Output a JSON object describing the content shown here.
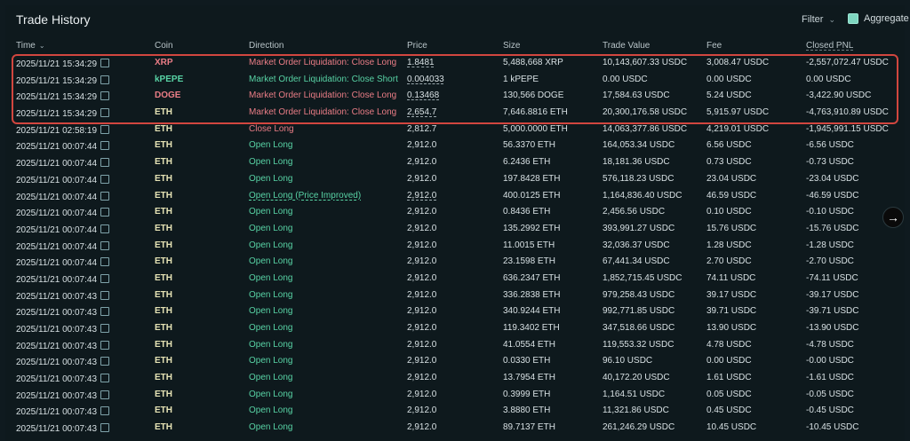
{
  "title": "Trade History",
  "controls": {
    "filter_label": "Filter",
    "aggregate_label": "Aggregate"
  },
  "table": {
    "headers": {
      "time": "Time",
      "coin": "Coin",
      "direction": "Direction",
      "price": "Price",
      "size": "Size",
      "trade_value": "Trade Value",
      "fee": "Fee",
      "closed_pnl": "Closed PNL"
    },
    "rows": [
      {
        "time": "2025/11/21 15:34:29",
        "coin": "XRP",
        "direction": "Market Order Liquidation: Close Long",
        "price": "1.8481",
        "size": "5,488,668 XRP",
        "trade_value": "10,143,607.33 USDC",
        "fee": "3,008.47 USDC",
        "closed_pnl": "-2,557,072.47 USDC"
      },
      {
        "time": "2025/11/21 15:34:29",
        "coin": "kPEPE",
        "direction": "Market Order Liquidation: Close Short",
        "price": "0.004033",
        "size": "1 kPEPE",
        "trade_value": "0.00 USDC",
        "fee": "0.00 USDC",
        "closed_pnl": "0.00 USDC"
      },
      {
        "time": "2025/11/21 15:34:29",
        "coin": "DOGE",
        "direction": "Market Order Liquidation: Close Long",
        "price": "0.13468",
        "size": "130,566 DOGE",
        "trade_value": "17,584.63 USDC",
        "fee": "5.24 USDC",
        "closed_pnl": "-3,422.90 USDC"
      },
      {
        "time": "2025/11/21 15:34:29",
        "coin": "ETH",
        "direction": "Market Order Liquidation: Close Long",
        "price": "2,654.7",
        "size": "7,646.8816 ETH",
        "trade_value": "20,300,176.58 USDC",
        "fee": "5,915.97 USDC",
        "closed_pnl": "-4,763,910.89 USDC"
      },
      {
        "time": "2025/11/21 02:58:19",
        "coin": "ETH",
        "direction": "Close Long",
        "price": "2,812.7",
        "size": "5,000.0000 ETH",
        "trade_value": "14,063,377.86 USDC",
        "fee": "4,219.01 USDC",
        "closed_pnl": "-1,945,991.15 USDC"
      },
      {
        "time": "2025/11/21 00:07:44",
        "coin": "ETH",
        "direction": "Open Long",
        "price": "2,912.0",
        "size": "56.3370 ETH",
        "trade_value": "164,053.34 USDC",
        "fee": "6.56 USDC",
        "closed_pnl": "-6.56 USDC"
      },
      {
        "time": "2025/11/21 00:07:44",
        "coin": "ETH",
        "direction": "Open Long",
        "price": "2,912.0",
        "size": "6.2436 ETH",
        "trade_value": "18,181.36 USDC",
        "fee": "0.73 USDC",
        "closed_pnl": "-0.73 USDC"
      },
      {
        "time": "2025/11/21 00:07:44",
        "coin": "ETH",
        "direction": "Open Long",
        "price": "2,912.0",
        "size": "197.8428 ETH",
        "trade_value": "576,118.23 USDC",
        "fee": "23.04 USDC",
        "closed_pnl": "-23.04 USDC"
      },
      {
        "time": "2025/11/21 00:07:44",
        "coin": "ETH",
        "direction": "Open Long (Price Improved)",
        "price": "2,912.0",
        "size": "400.0125 ETH",
        "trade_value": "1,164,836.40 USDC",
        "fee": "46.59 USDC",
        "closed_pnl": "-46.59 USDC"
      },
      {
        "time": "2025/11/21 00:07:44",
        "coin": "ETH",
        "direction": "Open Long",
        "price": "2,912.0",
        "size": "0.8436 ETH",
        "trade_value": "2,456.56 USDC",
        "fee": "0.10 USDC",
        "closed_pnl": "-0.10 USDC"
      },
      {
        "time": "2025/11/21 00:07:44",
        "coin": "ETH",
        "direction": "Open Long",
        "price": "2,912.0",
        "size": "135.2992 ETH",
        "trade_value": "393,991.27 USDC",
        "fee": "15.76 USDC",
        "closed_pnl": "-15.76 USDC"
      },
      {
        "time": "2025/11/21 00:07:44",
        "coin": "ETH",
        "direction": "Open Long",
        "price": "2,912.0",
        "size": "11.0015 ETH",
        "trade_value": "32,036.37 USDC",
        "fee": "1.28 USDC",
        "closed_pnl": "-1.28 USDC"
      },
      {
        "time": "2025/11/21 00:07:44",
        "coin": "ETH",
        "direction": "Open Long",
        "price": "2,912.0",
        "size": "23.1598 ETH",
        "trade_value": "67,441.34 USDC",
        "fee": "2.70 USDC",
        "closed_pnl": "-2.70 USDC"
      },
      {
        "time": "2025/11/21 00:07:44",
        "coin": "ETH",
        "direction": "Open Long",
        "price": "2,912.0",
        "size": "636.2347 ETH",
        "trade_value": "1,852,715.45 USDC",
        "fee": "74.11 USDC",
        "closed_pnl": "-74.11 USDC"
      },
      {
        "time": "2025/11/21 00:07:43",
        "coin": "ETH",
        "direction": "Open Long",
        "price": "2,912.0",
        "size": "336.2838 ETH",
        "trade_value": "979,258.43 USDC",
        "fee": "39.17 USDC",
        "closed_pnl": "-39.17 USDC"
      },
      {
        "time": "2025/11/21 00:07:43",
        "coin": "ETH",
        "direction": "Open Long",
        "price": "2,912.0",
        "size": "340.9244 ETH",
        "trade_value": "992,771.85 USDC",
        "fee": "39.71 USDC",
        "closed_pnl": "-39.71 USDC"
      },
      {
        "time": "2025/11/21 00:07:43",
        "coin": "ETH",
        "direction": "Open Long",
        "price": "2,912.0",
        "size": "119.3402 ETH",
        "trade_value": "347,518.66 USDC",
        "fee": "13.90 USDC",
        "closed_pnl": "-13.90 USDC"
      },
      {
        "time": "2025/11/21 00:07:43",
        "coin": "ETH",
        "direction": "Open Long",
        "price": "2,912.0",
        "size": "41.0554 ETH",
        "trade_value": "119,553.32 USDC",
        "fee": "4.78 USDC",
        "closed_pnl": "-4.78 USDC"
      },
      {
        "time": "2025/11/21 00:07:43",
        "coin": "ETH",
        "direction": "Open Long",
        "price": "2,912.0",
        "size": "0.0330 ETH",
        "trade_value": "96.10 USDC",
        "fee": "0.00 USDC",
        "closed_pnl": "-0.00 USDC"
      },
      {
        "time": "2025/11/21 00:07:43",
        "coin": "ETH",
        "direction": "Open Long",
        "price": "2,912.0",
        "size": "13.7954 ETH",
        "trade_value": "40,172.20 USDC",
        "fee": "1.61 USDC",
        "closed_pnl": "-1.61 USDC"
      },
      {
        "time": "2025/11/21 00:07:43",
        "coin": "ETH",
        "direction": "Open Long",
        "price": "2,912.0",
        "size": "0.3999 ETH",
        "trade_value": "1,164.51 USDC",
        "fee": "0.05 USDC",
        "closed_pnl": "-0.05 USDC"
      },
      {
        "time": "2025/11/21 00:07:43",
        "coin": "ETH",
        "direction": "Open Long",
        "price": "2,912.0",
        "size": "3.8880 ETH",
        "trade_value": "11,321.86 USDC",
        "fee": "0.45 USDC",
        "closed_pnl": "-0.45 USDC"
      },
      {
        "time": "2025/11/21 00:07:43",
        "coin": "ETH",
        "direction": "Open Long",
        "price": "2,912.0",
        "size": "89.7137 ETH",
        "trade_value": "261,246.29 USDC",
        "fee": "10.45 USDC",
        "closed_pnl": "-10.45 USDC"
      }
    ]
  },
  "icons": {
    "external_link": "external-link-icon",
    "chevron_down": "chevron-down-icon",
    "arrow_right": "arrow-right-icon"
  },
  "colors": {
    "background": "#0e191d",
    "red": "#ea7d86",
    "green": "#58d3a5",
    "highlight_border": "#d2463f",
    "accent_checkbox": "#7ed6c0"
  }
}
